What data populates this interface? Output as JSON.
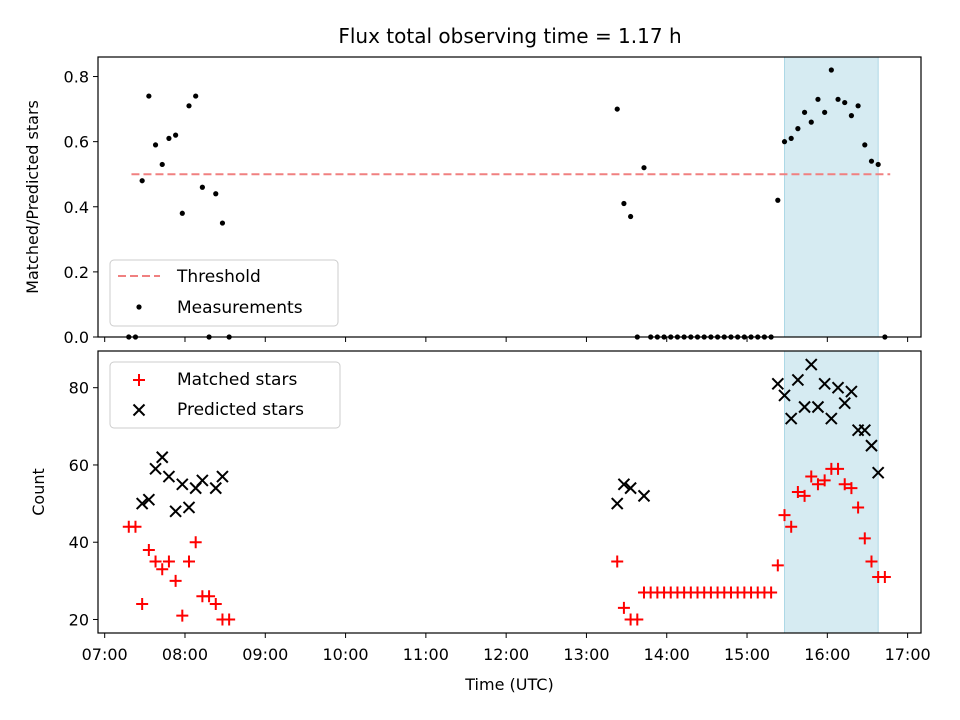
{
  "chart_data": [
    {
      "type": "scatter",
      "title": "Flux total observing time = 1.17 h",
      "xlabel": "",
      "ylabel": "Matched/Predicted stars",
      "xlim": [
        "06:55",
        "17:10"
      ],
      "ylim": [
        0,
        0.86
      ],
      "yticks": [
        "0.0",
        "0.2",
        "0.4",
        "0.6",
        "0.8"
      ],
      "highlight_band": {
        "x": [
          "15:28",
          "16:38"
        ],
        "color": "#add8e6"
      },
      "threshold": {
        "name": "Threshold",
        "y": 0.5,
        "x": [
          "07:20",
          "16:47"
        ],
        "color": "#f08080"
      },
      "legend": {
        "position": "lower-left",
        "entries": [
          "Threshold",
          "Measurements"
        ]
      },
      "series": [
        {
          "name": "Measurements",
          "color": "#000000",
          "points": [
            [
              "07:18",
              0.0
            ],
            [
              "07:23",
              0.0
            ],
            [
              "07:28",
              0.48
            ],
            [
              "07:33",
              0.74
            ],
            [
              "07:38",
              0.59
            ],
            [
              "07:43",
              0.53
            ],
            [
              "07:48",
              0.61
            ],
            [
              "07:53",
              0.62
            ],
            [
              "07:58",
              0.38
            ],
            [
              "08:03",
              0.71
            ],
            [
              "08:08",
              0.74
            ],
            [
              "08:13",
              0.46
            ],
            [
              "08:18",
              0.0
            ],
            [
              "08:23",
              0.44
            ],
            [
              "08:28",
              0.35
            ],
            [
              "08:33",
              0.0
            ],
            [
              "13:23",
              0.7
            ],
            [
              "13:28",
              0.41
            ],
            [
              "13:33",
              0.37
            ],
            [
              "13:38",
              0.0
            ],
            [
              "13:43",
              0.52
            ],
            [
              "13:48",
              0.0
            ],
            [
              "13:53",
              0.0
            ],
            [
              "13:58",
              0.0
            ],
            [
              "14:03",
              0.0
            ],
            [
              "14:08",
              0.0
            ],
            [
              "14:13",
              0.0
            ],
            [
              "14:18",
              0.0
            ],
            [
              "14:23",
              0.0
            ],
            [
              "14:28",
              0.0
            ],
            [
              "14:33",
              0.0
            ],
            [
              "14:38",
              0.0
            ],
            [
              "14:43",
              0.0
            ],
            [
              "14:48",
              0.0
            ],
            [
              "14:53",
              0.0
            ],
            [
              "14:58",
              0.0
            ],
            [
              "15:03",
              0.0
            ],
            [
              "15:08",
              0.0
            ],
            [
              "15:13",
              0.0
            ],
            [
              "15:18",
              0.0
            ],
            [
              "15:23",
              0.42
            ],
            [
              "15:28",
              0.6
            ],
            [
              "15:33",
              0.61
            ],
            [
              "15:38",
              0.64
            ],
            [
              "15:43",
              0.69
            ],
            [
              "15:48",
              0.66
            ],
            [
              "15:53",
              0.73
            ],
            [
              "15:58",
              0.69
            ],
            [
              "16:03",
              0.82
            ],
            [
              "16:08",
              0.73
            ],
            [
              "16:13",
              0.72
            ],
            [
              "16:18",
              0.68
            ],
            [
              "16:23",
              0.71
            ],
            [
              "16:28",
              0.59
            ],
            [
              "16:33",
              0.54
            ],
            [
              "16:38",
              0.53
            ],
            [
              "16:43",
              0.0
            ]
          ]
        }
      ]
    },
    {
      "type": "scatter",
      "title": "",
      "xlabel": "Time (UTC)",
      "ylabel": "Count",
      "xlim": [
        "06:55",
        "17:10"
      ],
      "ylim": [
        16.5,
        89.5
      ],
      "xticks": [
        "07:00",
        "08:00",
        "09:00",
        "10:00",
        "11:00",
        "12:00",
        "13:00",
        "14:00",
        "15:00",
        "16:00",
        "17:00"
      ],
      "yticks": [
        "20",
        "40",
        "60",
        "80"
      ],
      "highlight_band": {
        "x": [
          "15:28",
          "16:38"
        ],
        "color": "#add8e6"
      },
      "legend": {
        "position": "upper-left",
        "entries": [
          "Matched stars",
          "Predicted stars"
        ]
      },
      "series": [
        {
          "name": "Matched stars",
          "marker": "+",
          "color": "#ff0000",
          "points": [
            [
              "07:18",
              44
            ],
            [
              "07:23",
              44
            ],
            [
              "07:28",
              24
            ],
            [
              "07:33",
              38
            ],
            [
              "07:38",
              35
            ],
            [
              "07:43",
              33
            ],
            [
              "07:48",
              35
            ],
            [
              "07:53",
              30
            ],
            [
              "07:58",
              21
            ],
            [
              "08:03",
              35
            ],
            [
              "08:08",
              40
            ],
            [
              "08:13",
              26
            ],
            [
              "08:18",
              26
            ],
            [
              "08:23",
              24
            ],
            [
              "08:28",
              20
            ],
            [
              "08:33",
              20
            ],
            [
              "13:23",
              35
            ],
            [
              "13:28",
              23
            ],
            [
              "13:33",
              20
            ],
            [
              "13:38",
              20
            ],
            [
              "13:43",
              27
            ],
            [
              "13:48",
              27
            ],
            [
              "13:53",
              27
            ],
            [
              "13:58",
              27
            ],
            [
              "14:03",
              27
            ],
            [
              "14:08",
              27
            ],
            [
              "14:13",
              27
            ],
            [
              "14:18",
              27
            ],
            [
              "14:23",
              27
            ],
            [
              "14:28",
              27
            ],
            [
              "14:33",
              27
            ],
            [
              "14:38",
              27
            ],
            [
              "14:43",
              27
            ],
            [
              "14:48",
              27
            ],
            [
              "14:53",
              27
            ],
            [
              "14:58",
              27
            ],
            [
              "15:03",
              27
            ],
            [
              "15:08",
              27
            ],
            [
              "15:13",
              27
            ],
            [
              "15:18",
              27
            ],
            [
              "15:23",
              34
            ],
            [
              "15:28",
              47
            ],
            [
              "15:33",
              44
            ],
            [
              "15:38",
              53
            ],
            [
              "15:43",
              52
            ],
            [
              "15:48",
              57
            ],
            [
              "15:53",
              55
            ],
            [
              "15:58",
              56
            ],
            [
              "16:03",
              59
            ],
            [
              "16:08",
              59
            ],
            [
              "16:13",
              55
            ],
            [
              "16:18",
              54
            ],
            [
              "16:23",
              49
            ],
            [
              "16:28",
              41
            ],
            [
              "16:33",
              35
            ],
            [
              "16:38",
              31
            ],
            [
              "16:43",
              31
            ]
          ]
        },
        {
          "name": "Predicted stars",
          "marker": "x",
          "color": "#000000",
          "points": [
            [
              "07:28",
              50
            ],
            [
              "07:33",
              51
            ],
            [
              "07:38",
              59
            ],
            [
              "07:43",
              62
            ],
            [
              "07:48",
              57
            ],
            [
              "07:53",
              48
            ],
            [
              "07:58",
              55
            ],
            [
              "08:03",
              49
            ],
            [
              "08:08",
              54
            ],
            [
              "08:13",
              56
            ],
            [
              "08:23",
              54
            ],
            [
              "08:28",
              57
            ],
            [
              "13:23",
              50
            ],
            [
              "13:28",
              55
            ],
            [
              "13:33",
              54
            ],
            [
              "13:43",
              52
            ],
            [
              "15:23",
              81
            ],
            [
              "15:28",
              78
            ],
            [
              "15:33",
              72
            ],
            [
              "15:38",
              82
            ],
            [
              "15:43",
              75
            ],
            [
              "15:48",
              86
            ],
            [
              "15:53",
              75
            ],
            [
              "15:58",
              81
            ],
            [
              "16:03",
              72
            ],
            [
              "16:08",
              80
            ],
            [
              "16:13",
              76
            ],
            [
              "16:18",
              79
            ],
            [
              "16:23",
              69
            ],
            [
              "16:28",
              69
            ],
            [
              "16:33",
              65
            ],
            [
              "16:38",
              58
            ]
          ]
        }
      ]
    }
  ]
}
